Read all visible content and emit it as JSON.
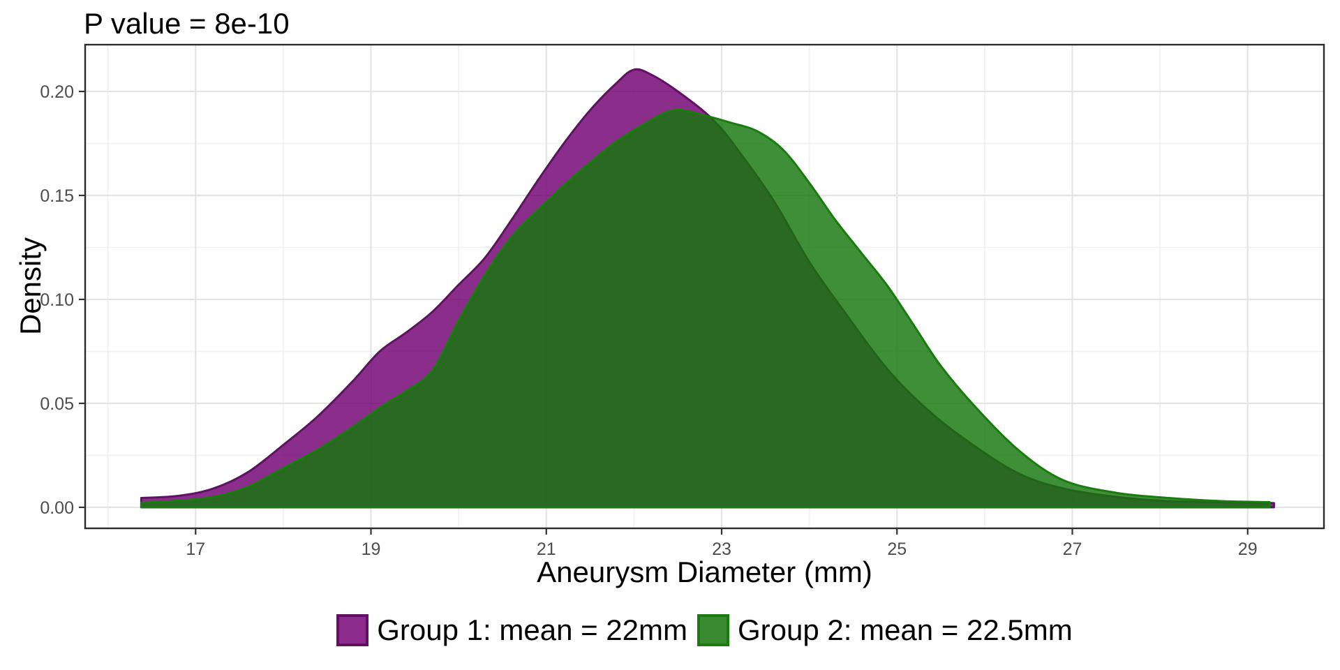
{
  "title": "P value = 8e-10",
  "axes": {
    "x_title": "Aneurysm Diameter (mm)",
    "y_title": "Density"
  },
  "legend": {
    "items": [
      {
        "label": "Group 1: mean = 22mm",
        "swatch_fill": "#8c2d8e",
        "swatch_border": "#5e1261"
      },
      {
        "label": "Group 2: mean = 22.5mm",
        "swatch_fill": "#3a8a31",
        "swatch_border": "#1b7a10"
      }
    ]
  },
  "colors": {
    "panel_background": "#ffffff",
    "panel_border": "#2b2b2b",
    "grid_major": "#e4e4e4",
    "grid_minor": "#f0f0f0",
    "tick_mark": "#333333",
    "tick_label": "#4d4d4d",
    "purple_fill": "rgba(113,0,114,0.82)",
    "purple_stroke": "#5e1261",
    "green_fill": "rgba(20,118,11,0.82)",
    "green_stroke": "#1b7a10"
  },
  "chart_data": {
    "type": "area",
    "subtype": "density",
    "title": "P value = 8e-10",
    "xlabel": "Aneurysm Diameter (mm)",
    "ylabel": "Density",
    "xlim": [
      15.74,
      29.87
    ],
    "ylim": [
      -0.0101,
      0.2225
    ],
    "grid": true,
    "legend_position": "bottom",
    "x_ticks": [
      17,
      19,
      21,
      23,
      25,
      27,
      29
    ],
    "x_minor_breaks": [
      16,
      18,
      20,
      22,
      24,
      26,
      28
    ],
    "y_ticks": [
      0.0,
      0.05,
      0.1,
      0.15,
      0.2
    ],
    "y_tick_labels": [
      "0.00",
      "0.05",
      "0.10",
      "0.15",
      "0.20"
    ],
    "y_minor_breaks": [
      0.025,
      0.075,
      0.125,
      0.175
    ],
    "series": [
      {
        "name": "Group 1: mean = 22mm",
        "mean_mm": 22,
        "peak_density": 0.21,
        "fill": "rgba(113,0,114,0.82)",
        "stroke": "#5e1261",
        "points": [
          [
            16.38,
            0.0045
          ],
          [
            16.8,
            0.0055
          ],
          [
            17.2,
            0.009
          ],
          [
            17.6,
            0.017
          ],
          [
            18.0,
            0.03
          ],
          [
            18.4,
            0.044
          ],
          [
            18.8,
            0.061
          ],
          [
            19.1,
            0.075
          ],
          [
            19.4,
            0.084
          ],
          [
            19.7,
            0.094
          ],
          [
            20.0,
            0.107
          ],
          [
            20.3,
            0.12
          ],
          [
            20.6,
            0.138
          ],
          [
            20.9,
            0.157
          ],
          [
            21.2,
            0.175
          ],
          [
            21.5,
            0.191
          ],
          [
            21.8,
            0.204
          ],
          [
            22.0,
            0.2105
          ],
          [
            22.2,
            0.208
          ],
          [
            22.5,
            0.2
          ],
          [
            22.9,
            0.1865
          ],
          [
            23.2,
            0.171
          ],
          [
            23.6,
            0.147
          ],
          [
            24.0,
            0.118
          ],
          [
            24.4,
            0.094
          ],
          [
            24.9,
            0.066
          ],
          [
            25.4,
            0.045
          ],
          [
            25.9,
            0.029
          ],
          [
            26.4,
            0.016
          ],
          [
            26.9,
            0.009
          ],
          [
            27.5,
            0.005
          ],
          [
            28.1,
            0.003
          ],
          [
            28.7,
            0.0026
          ],
          [
            29.3,
            0.002
          ]
        ]
      },
      {
        "name": "Group 2: mean = 22.5mm",
        "mean_mm": 22.5,
        "peak_density": 0.191,
        "fill": "rgba(20,118,11,0.82)",
        "stroke": "#1b7a10",
        "points": [
          [
            16.38,
            0.0022
          ],
          [
            16.8,
            0.0032
          ],
          [
            17.2,
            0.005
          ],
          [
            17.6,
            0.01
          ],
          [
            18.0,
            0.019
          ],
          [
            18.4,
            0.028
          ],
          [
            18.8,
            0.039
          ],
          [
            19.1,
            0.048
          ],
          [
            19.4,
            0.056
          ],
          [
            19.7,
            0.066
          ],
          [
            20.0,
            0.09
          ],
          [
            20.3,
            0.112
          ],
          [
            20.6,
            0.13
          ],
          [
            20.9,
            0.143
          ],
          [
            21.2,
            0.155
          ],
          [
            21.5,
            0.166
          ],
          [
            21.8,
            0.176
          ],
          [
            22.1,
            0.184
          ],
          [
            22.45,
            0.191
          ],
          [
            22.8,
            0.1885
          ],
          [
            23.1,
            0.185
          ],
          [
            23.4,
            0.181
          ],
          [
            23.7,
            0.172
          ],
          [
            24.0,
            0.156
          ],
          [
            24.3,
            0.138
          ],
          [
            24.6,
            0.122
          ],
          [
            24.9,
            0.106
          ],
          [
            25.2,
            0.087
          ],
          [
            25.5,
            0.068
          ],
          [
            25.9,
            0.048
          ],
          [
            26.4,
            0.027
          ],
          [
            26.9,
            0.013
          ],
          [
            27.5,
            0.007
          ],
          [
            28.1,
            0.0045
          ],
          [
            28.7,
            0.003
          ],
          [
            29.25,
            0.0025
          ]
        ]
      }
    ]
  }
}
